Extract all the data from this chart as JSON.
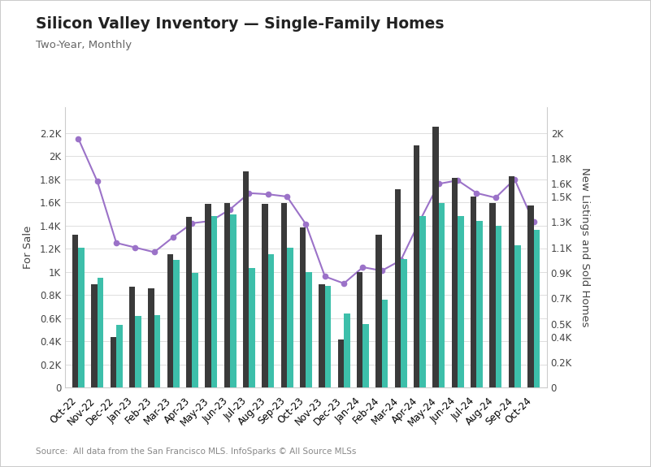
{
  "months": [
    "Oct-22",
    "Nov-22",
    "Dec-22",
    "Jan-23",
    "Feb-23",
    "Mar-23",
    "Apr-23",
    "May-23",
    "Jun-23",
    "Jul-23",
    "Aug-23",
    "Sep-23",
    "Oct-23",
    "Nov-23",
    "Dec-23",
    "Jan-24",
    "Feb-24",
    "Mar-24",
    "Apr-24",
    "May-24",
    "Jun-24",
    "Jul-24",
    "Aug-24",
    "Sep-24",
    "Oct-24"
  ],
  "for_sale": [
    2150,
    1780,
    1250,
    1210,
    1170,
    1300,
    1420,
    1440,
    1540,
    1680,
    1670,
    1650,
    1410,
    960,
    900,
    1040,
    1010,
    1100,
    1440,
    1760,
    1790,
    1680,
    1640,
    1800,
    1430
  ],
  "new_listings": [
    1200,
    810,
    400,
    790,
    780,
    1050,
    1340,
    1440,
    1450,
    1700,
    1440,
    1450,
    1260,
    810,
    380,
    910,
    1200,
    1560,
    1900,
    2050,
    1650,
    1500,
    1450,
    1660,
    1430
  ],
  "sold": [
    1100,
    860,
    490,
    560,
    570,
    1000,
    900,
    1350,
    1360,
    940,
    1050,
    1100,
    910,
    800,
    580,
    500,
    690,
    1010,
    1350,
    1450,
    1350,
    1310,
    1270,
    1120,
    1240
  ],
  "title": "Silicon Valley Inventory — Single-Family Homes",
  "subtitle": "Two-Year, Monthly",
  "ylabel_left": "For Sale",
  "ylabel_right": "New Listings and Sold Homes",
  "source": "Source:  All data from the San Francisco MLS. InfoSparks © All Source MLSs",
  "for_sale_color": "#9b72c8",
  "new_listings_color": "#3a3a3a",
  "sold_color": "#3dbfaa",
  "left_ylim": [
    0,
    2420
  ],
  "right_ylim": [
    0,
    2200
  ],
  "left_yticks": [
    0,
    200,
    400,
    600,
    800,
    1000,
    1200,
    1400,
    1600,
    1800,
    2000,
    2200
  ],
  "left_yticklabels": [
    "0",
    "0.2K",
    "0.4K",
    "0.6K",
    "0.8K",
    "1K",
    "1.2K",
    "1.4K",
    "1.6K",
    "1.8K",
    "2K",
    "2.2K"
  ],
  "right_yticks": [
    0,
    200,
    400,
    500,
    700,
    900,
    1100,
    1300,
    1500,
    1600,
    1800,
    2000
  ],
  "right_yticklabels": [
    "0",
    "0.2K",
    "0.4K",
    "0.5K",
    "0.7K",
    "0.9K",
    "1.1K",
    "1.3K",
    "1.5K",
    "1.6K",
    "1.8K",
    "2K"
  ],
  "bg_color": "#ffffff",
  "plot_bg_color": "#ffffff",
  "border_color": "#cccccc"
}
